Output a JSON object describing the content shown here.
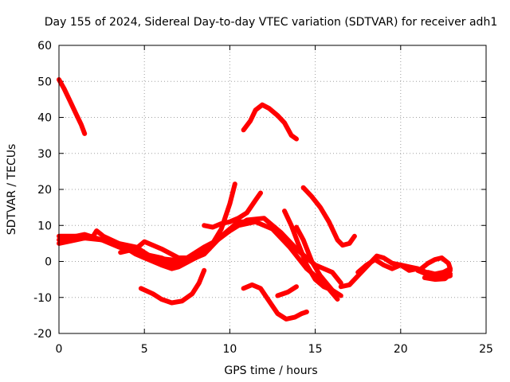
{
  "chart_data": {
    "type": "line",
    "title": "Day 155 of 2024, Sidereal Day-to-day VTEC variation (SDTVAR) for receiver adh1",
    "xlabel": "GPS time / hours",
    "ylabel": "SDTVAR / TECUs",
    "xlim": [
      0,
      25
    ],
    "ylim": [
      -20,
      60
    ],
    "xticks": [
      0,
      5,
      10,
      15,
      20,
      25
    ],
    "yticks": [
      -20,
      -10,
      0,
      10,
      20,
      30,
      40,
      50,
      60
    ],
    "grid": true,
    "color": "#ff0000",
    "series": [
      {
        "name": "s1",
        "points": [
          [
            0.0,
            50.5
          ],
          [
            0.3,
            48
          ],
          [
            0.6,
            45
          ],
          [
            1.0,
            41
          ],
          [
            1.3,
            38
          ],
          [
            1.5,
            35.5
          ]
        ]
      },
      {
        "name": "s2",
        "points": [
          [
            0.0,
            5
          ],
          [
            1.0,
            6
          ],
          [
            2.0,
            7
          ],
          [
            2.2,
            8.5
          ],
          [
            2.6,
            7
          ],
          [
            3.5,
            5
          ],
          [
            4.5,
            4
          ],
          [
            5.5,
            1
          ],
          [
            6.5,
            -1
          ],
          [
            7.5,
            0
          ],
          [
            8.5,
            3
          ],
          [
            9.5,
            7
          ],
          [
            10.5,
            10
          ],
          [
            11.5,
            11
          ],
          [
            12.5,
            9
          ],
          [
            13.5,
            4
          ],
          [
            14.5,
            -2
          ],
          [
            15.5,
            -6
          ],
          [
            16.3,
            -10.5
          ]
        ]
      },
      {
        "name": "s3",
        "points": [
          [
            0.0,
            7
          ],
          [
            1.0,
            7
          ],
          [
            2.0,
            6.5
          ],
          [
            3.0,
            5.5
          ],
          [
            4.0,
            4
          ],
          [
            5.0,
            2
          ],
          [
            6.0,
            1
          ],
          [
            7.0,
            -1
          ],
          [
            7.5,
            1
          ],
          [
            8.5,
            4
          ],
          [
            9.3,
            6
          ],
          [
            10.0,
            8.5
          ],
          [
            10.5,
            10
          ],
          [
            11.0,
            11.5
          ],
          [
            12.0,
            12
          ],
          [
            12.5,
            10
          ],
          [
            13.0,
            8
          ],
          [
            14.0,
            3
          ],
          [
            15.0,
            -1
          ],
          [
            16.0,
            -3
          ],
          [
            16.5,
            -6
          ]
        ]
      },
      {
        "name": "s4",
        "points": [
          [
            0.0,
            6
          ],
          [
            1.5,
            6.5
          ],
          [
            2.5,
            6
          ],
          [
            3.5,
            5
          ],
          [
            4.5,
            2
          ],
          [
            5.0,
            1
          ],
          [
            5.5,
            0
          ],
          [
            6.0,
            -1
          ],
          [
            6.6,
            -2
          ],
          [
            7.0,
            -1.5
          ],
          [
            8.0,
            1
          ],
          [
            8.8,
            3.5
          ],
          [
            9.5,
            9
          ],
          [
            10.0,
            16
          ],
          [
            10.3,
            21.5
          ]
        ]
      },
      {
        "name": "s5",
        "points": [
          [
            0.5,
            6.5
          ],
          [
            1.5,
            7.5
          ],
          [
            2.5,
            6
          ],
          [
            3.5,
            4
          ],
          [
            4.5,
            2.5
          ],
          [
            5.5,
            1
          ],
          [
            6.5,
            0.5
          ],
          [
            7.5,
            0
          ],
          [
            8.5,
            2
          ],
          [
            9.5,
            7
          ],
          [
            10.5,
            11
          ],
          [
            11.2,
            11
          ]
        ]
      },
      {
        "name": "s6",
        "points": [
          [
            3.6,
            2.5
          ],
          [
            4.5,
            3.5
          ],
          [
            5.0,
            5.5
          ],
          [
            6.0,
            3.5
          ],
          [
            7.0,
            1
          ],
          [
            8.0,
            1
          ],
          [
            8.5,
            2.5
          ]
        ]
      },
      {
        "name": "s7",
        "points": [
          [
            8.5,
            10
          ],
          [
            9.0,
            9.5
          ],
          [
            9.5,
            10.5
          ],
          [
            10.0,
            11
          ],
          [
            10.5,
            12
          ],
          [
            11.0,
            13.5
          ],
          [
            11.5,
            17
          ],
          [
            11.8,
            19
          ]
        ]
      },
      {
        "name": "s8",
        "points": [
          [
            4.8,
            -7.5
          ],
          [
            5.5,
            -9
          ],
          [
            6.0,
            -10.5
          ],
          [
            6.6,
            -11.5
          ],
          [
            7.2,
            -11
          ],
          [
            7.8,
            -9
          ],
          [
            8.2,
            -6
          ],
          [
            8.5,
            -2.5
          ]
        ]
      },
      {
        "name": "s9",
        "points": [
          [
            10.8,
            36.5
          ],
          [
            11.2,
            39
          ],
          [
            11.5,
            42
          ],
          [
            11.9,
            43.5
          ],
          [
            12.3,
            42.5
          ],
          [
            12.8,
            40.5
          ],
          [
            13.2,
            38.5
          ],
          [
            13.6,
            35
          ],
          [
            13.9,
            34
          ]
        ]
      },
      {
        "name": "s10",
        "points": [
          [
            10.8,
            -7.5
          ],
          [
            11.3,
            -6.5
          ],
          [
            11.8,
            -7.5
          ],
          [
            12.3,
            -11
          ],
          [
            12.8,
            -14.5
          ],
          [
            13.3,
            -16
          ],
          [
            13.8,
            -15.5
          ],
          [
            14.2,
            -14.5
          ],
          [
            14.5,
            -14
          ]
        ]
      },
      {
        "name": "s11",
        "points": [
          [
            12.8,
            -9.5
          ],
          [
            13.4,
            -8.5
          ],
          [
            13.9,
            -7
          ]
        ]
      },
      {
        "name": "s12",
        "points": [
          [
            13.2,
            14
          ],
          [
            13.6,
            10
          ],
          [
            14.0,
            5
          ],
          [
            14.5,
            -1
          ],
          [
            15.0,
            -5
          ],
          [
            15.5,
            -7
          ],
          [
            16.0,
            -8
          ]
        ]
      },
      {
        "name": "s13",
        "points": [
          [
            13.9,
            9.5
          ],
          [
            14.3,
            6
          ],
          [
            14.8,
            0
          ],
          [
            15.3,
            -4
          ],
          [
            16.0,
            -8
          ],
          [
            16.5,
            -9.5
          ]
        ]
      },
      {
        "name": "s14",
        "points": [
          [
            14.3,
            20.5
          ],
          [
            14.8,
            18
          ],
          [
            15.3,
            15
          ],
          [
            15.8,
            11
          ],
          [
            16.3,
            6
          ],
          [
            16.6,
            4.5
          ],
          [
            17.0,
            5
          ],
          [
            17.3,
            7
          ]
        ]
      },
      {
        "name": "s15",
        "points": [
          [
            16.5,
            -7
          ],
          [
            17.0,
            -6.5
          ],
          [
            17.5,
            -4
          ],
          [
            18.0,
            -1.5
          ],
          [
            18.6,
            1.5
          ],
          [
            19.0,
            1
          ],
          [
            19.5,
            -0.5
          ],
          [
            20.0,
            -1
          ],
          [
            20.5,
            -1.5
          ],
          [
            21.0,
            -2
          ],
          [
            21.5,
            -3
          ],
          [
            22.0,
            -4
          ],
          [
            22.5,
            -4.5
          ],
          [
            22.9,
            -4
          ]
        ]
      },
      {
        "name": "s16",
        "points": [
          [
            17.5,
            -3
          ],
          [
            18.0,
            -1
          ],
          [
            18.5,
            0.5
          ],
          [
            19.0,
            -1
          ],
          [
            19.5,
            -2
          ],
          [
            20.0,
            -1
          ],
          [
            20.5,
            -2.5
          ],
          [
            21.0,
            -2
          ]
        ]
      },
      {
        "name": "s17",
        "points": [
          [
            21.2,
            -2
          ],
          [
            21.6,
            -0.5
          ],
          [
            22.0,
            0.5
          ],
          [
            22.4,
            1
          ],
          [
            22.8,
            -0.5
          ],
          [
            22.9,
            -2
          ],
          [
            22.5,
            -3
          ],
          [
            22.0,
            -3.5
          ],
          [
            21.6,
            -3
          ]
        ]
      },
      {
        "name": "s18",
        "points": [
          [
            21.0,
            -2.5
          ],
          [
            21.5,
            -3.5
          ],
          [
            22.0,
            -4
          ],
          [
            22.5,
            -3.5
          ],
          [
            22.9,
            -2.5
          ]
        ]
      },
      {
        "name": "s19",
        "points": [
          [
            21.4,
            -4.5
          ],
          [
            22.0,
            -5
          ],
          [
            22.6,
            -4.8
          ],
          [
            22.9,
            -3.5
          ]
        ]
      }
    ]
  }
}
